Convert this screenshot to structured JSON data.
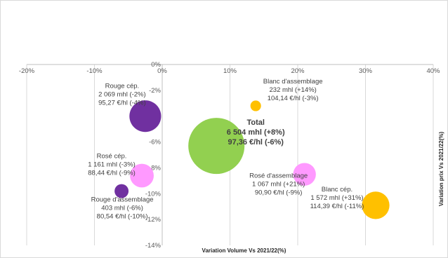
{
  "chart_data": {
    "type": "bubble",
    "xlabel": "Variation Volume Vs 2021/22(%)",
    "ylabel": "Variation prix Vs 2021/22(%)",
    "xlim": [
      -20,
      40
    ],
    "ylim": [
      -14,
      0
    ],
    "x_ticks": [
      "-20%",
      "-10%",
      "0%",
      "10%",
      "20%",
      "30%",
      "40%"
    ],
    "y_ticks": [
      "0%",
      "-2%",
      "-4%",
      "-6%",
      "-8%",
      "-10%",
      "-12%",
      "-14%"
    ],
    "grid": "vertical",
    "points": [
      {
        "x": -2.5,
        "y": -4.0,
        "volume": 2069,
        "color": "#7030a0",
        "lines": [
          "Rouge cép.",
          "2 069 mhl (-2%)",
          "95,27 €/hl (-4%)"
        ]
      },
      {
        "x": 13.8,
        "y": -3.2,
        "volume": 232,
        "color": "#ffc000",
        "lines": [
          "Blanc d'assemblage",
          "232 mhl (+14%)",
          "104,14 €/hl (-3%)"
        ]
      },
      {
        "x": 8.0,
        "y": -6.3,
        "volume": 6504,
        "color": "#92d050",
        "lines": [
          "Total",
          "6 504 mhl (+8%)",
          "97,36 €/hl (-6%)"
        ]
      },
      {
        "x": -3.0,
        "y": -8.6,
        "volume": 1161,
        "color": "#ff99ff",
        "lines": [
          "Rosé cép.",
          "1 161 mhl (-3%)",
          "88,44 €/hl (-9%)"
        ]
      },
      {
        "x": 21.0,
        "y": -8.5,
        "volume": 1067,
        "color": "#ff99ff",
        "lines": [
          "Rosé d'assemblage",
          "1 067 mhl (+21%)",
          "90,90 €/hl (-9%)"
        ]
      },
      {
        "x": -6.0,
        "y": -9.8,
        "volume": 403,
        "color": "#7030a0",
        "lines": [
          "Rouge d'assemblage",
          "403 mhl (-6%)",
          "80,54 €/hl (-10%)"
        ]
      },
      {
        "x": 31.5,
        "y": -10.9,
        "volume": 1572,
        "color": "#ffc000",
        "lines": [
          "Blanc cép.",
          "1 572 mhl (+31%)",
          "114,39 €/hl (-11%)"
        ]
      }
    ]
  }
}
